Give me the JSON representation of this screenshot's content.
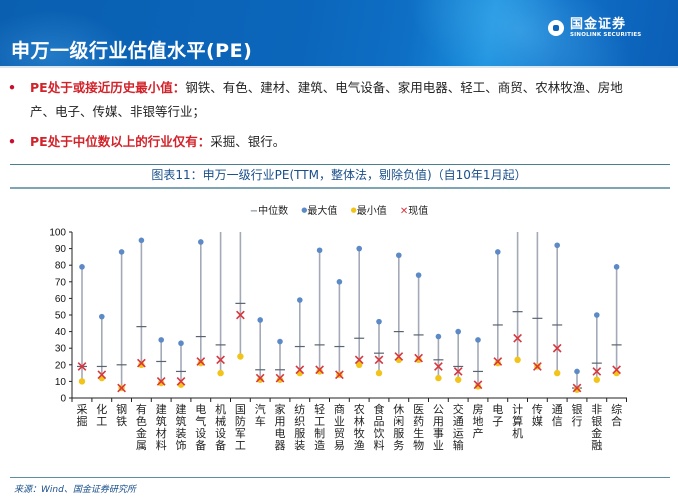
{
  "header": {
    "title": "申万一级行业估值水平(PE)",
    "logo_cn": "国金证券",
    "logo_en": "SINOLINK SECURITIES"
  },
  "bullets": [
    {
      "highlight": "PE处于或接近历史最小值：",
      "text": "钢铁、有色、建材、建筑、电气设备、家用电器、轻工、商贸、农林牧渔、房地",
      "continuation": "产、电子、传媒、非银等行业；"
    },
    {
      "highlight": "PE处于中位数以上的行业仅有：",
      "text": "采掘、银行。"
    }
  ],
  "figure": {
    "title": "图表11：申万一级行业PE(TTM，整体法，剔除负值)（自10年1月起）",
    "source": "来源：Wind、国金证券研究所"
  },
  "legend": {
    "median_symbol": "−",
    "median": "中位数",
    "max_symbol": "●",
    "max": "最大值",
    "min_symbol": "●",
    "min": "最小值",
    "current_symbol": "✕",
    "current": "现值"
  },
  "colors": {
    "line": "#a3a9b6",
    "median": "#5a6470",
    "max": "#5b8ac6",
    "min": "#f2c318",
    "current": "#d9363e",
    "axis": "#222222"
  },
  "chart_data": {
    "type": "scatter",
    "title": "申万一级行业PE(TTM，整体法，剔除负值)（自10年1月起）",
    "xlabel": "",
    "ylabel": "",
    "ylim": [
      0,
      100
    ],
    "yticks": [
      0,
      10,
      20,
      30,
      40,
      50,
      60,
      70,
      80,
      90,
      100
    ],
    "grid": false,
    "legend_position": "top-center",
    "categories": [
      "采掘",
      "化工",
      "钢铁",
      "有色金属",
      "建筑材料",
      "建筑装饰",
      "电气设备",
      "机械设备",
      "国防军工",
      "汽车",
      "家用电器",
      "纺织服装",
      "轻工制造",
      "商业贸易",
      "农林牧渔",
      "食品饮料",
      "休闲服务",
      "医药生物",
      "公用事业",
      "交通运输",
      "房地产",
      "电子",
      "计算机",
      "传媒",
      "通信",
      "银行",
      "非银金融",
      "综合"
    ],
    "series": [
      {
        "name": "最大值",
        "values": [
          79,
          49,
          88,
          95,
          35,
          33,
          94,
          100,
          100,
          47,
          34,
          59,
          89,
          70,
          90,
          46,
          86,
          74,
          37,
          40,
          35,
          88,
          100,
          100,
          92,
          16,
          50,
          79
        ]
      },
      {
        "name": "中位数",
        "values": [
          19,
          19,
          20,
          43,
          22,
          16,
          37,
          32,
          57,
          17,
          17,
          31,
          32,
          31,
          36,
          27,
          40,
          38,
          23,
          19,
          16,
          44,
          52,
          48,
          44,
          6,
          21,
          32
        ]
      },
      {
        "name": "最小值",
        "values": [
          10,
          12,
          6,
          20,
          9,
          8,
          21,
          15,
          25,
          11,
          11,
          15,
          16,
          14,
          20,
          15,
          23,
          23,
          12,
          11,
          7,
          21,
          23,
          19,
          15,
          5,
          11,
          15
        ]
      },
      {
        "name": "现值",
        "values": [
          19,
          14,
          6,
          21,
          10,
          10,
          22,
          23,
          50,
          12,
          12,
          17,
          17,
          14,
          23,
          23,
          25,
          24,
          19,
          16,
          8,
          22,
          36,
          19,
          30,
          6,
          16,
          17
        ]
      }
    ],
    "range_line_top_clipped": [
      false,
      false,
      false,
      false,
      false,
      false,
      false,
      true,
      true,
      false,
      false,
      false,
      false,
      false,
      false,
      false,
      false,
      false,
      false,
      false,
      false,
      false,
      true,
      true,
      false,
      false,
      false,
      false
    ]
  }
}
